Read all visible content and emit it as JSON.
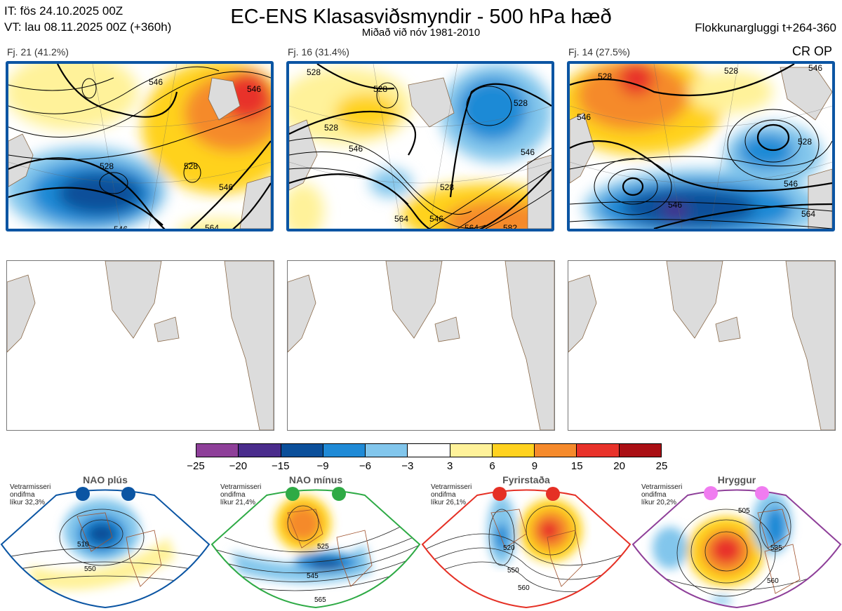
{
  "header": {
    "it": "IT: fös 24.10.2025 00Z",
    "vt": "VT: lau 08.11.2025 00Z  (+360h)",
    "title": "EC-ENS Klasasviðsmyndir - 500 hPa hæð",
    "subtitle": "Miðað við nóv 1981-2010",
    "window": "Flokkunargluggi t+264-360",
    "cr_op": "CR OP"
  },
  "clusters": [
    {
      "label": "Fj. 21 (41.2%)",
      "contours": [
        "546",
        "528",
        "528",
        "546",
        "546",
        "546",
        "564"
      ]
    },
    {
      "label": "Fj. 16 (31.4%)",
      "contours": [
        "528",
        "528",
        "528",
        "528",
        "546",
        "528",
        "546",
        "564",
        "546",
        "564",
        "582"
      ]
    },
    {
      "label": "Fj. 14 (27.5%)",
      "contours": [
        "528",
        "546",
        "528",
        "528",
        "546",
        "546",
        "564",
        "546"
      ]
    }
  ],
  "colorbar": {
    "ticks": [
      "−25",
      "−20",
      "−15",
      "−9",
      "−6",
      "−3",
      "3",
      "6",
      "9",
      "15",
      "20",
      "25"
    ],
    "colors": [
      "#8e3f99",
      "#4a2c8c",
      "#0b4f9a",
      "#1f8ad6",
      "#82c6ec",
      "#ffffff",
      "#fff29a",
      "#ffd21f",
      "#f58a2c",
      "#e8322a",
      "#aa0f14"
    ]
  },
  "regimes": [
    {
      "name": "NAO plús",
      "info": [
        "Vetrarmisseri",
        "ondifma",
        "líkur 32,3%"
      ],
      "color": "#0b55a3",
      "labels": [
        "510",
        "550"
      ]
    },
    {
      "name": "NAO mínus",
      "info": [
        "Vetrarmisseri",
        "ondifma",
        "líkur 21,4%"
      ],
      "color": "#2eaa45",
      "labels": [
        "525",
        "545",
        "565"
      ]
    },
    {
      "name": "Fyrirstaða",
      "info": [
        "Vetrarmisseri",
        "ondifma",
        "líkur 26,1%"
      ],
      "color": "#e53025",
      "labels": [
        "520",
        "550",
        "560"
      ]
    },
    {
      "name": "Hryggur",
      "info": [
        "Vetrarmisseri",
        "ondifma",
        "líkur 20,2%"
      ],
      "color": "#f07cf0",
      "labels": [
        "505",
        "535",
        "560"
      ]
    }
  ]
}
